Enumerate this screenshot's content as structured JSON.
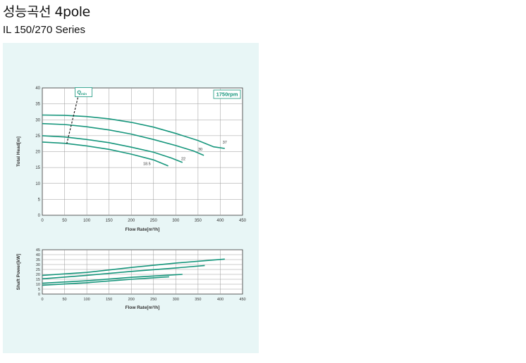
{
  "page": {
    "title": "성능곡선 4pole",
    "subtitle": "IL 150/270 Series"
  },
  "colors": {
    "panel_bg": "#e8f6f6",
    "curve": "#16967c",
    "grid": "#9a9a9a",
    "axis": "#333333"
  },
  "chart_data": [
    {
      "type": "line",
      "name": "head-chart",
      "xlabel": "Flow Rate[m³/h]",
      "ylabel": "Total Head[m]",
      "xlim": [
        0,
        450
      ],
      "ylim": [
        0,
        40
      ],
      "xticks": [
        0,
        50,
        100,
        150,
        200,
        250,
        300,
        350,
        400,
        450
      ],
      "yticks": [
        0,
        5,
        10,
        15,
        20,
        25,
        30,
        35,
        40
      ],
      "grid": true,
      "speed_badge": "1750rpm",
      "qmin_label": "Q",
      "qmin_sub": "min",
      "qmin_line": [
        [
          80,
          37
        ],
        [
          55,
          22.5
        ]
      ],
      "series": [
        {
          "name": "37",
          "points": [
            [
              0,
              31.5
            ],
            [
              50,
              31.4
            ],
            [
              100,
              31
            ],
            [
              150,
              30.3
            ],
            [
              200,
              29.2
            ],
            [
              250,
              27.7
            ],
            [
              300,
              25.7
            ],
            [
              350,
              23.5
            ],
            [
              385,
              21.5
            ],
            [
              410,
              21
            ]
          ]
        },
        {
          "name": "30",
          "points": [
            [
              0,
              28.8
            ],
            [
              50,
              28.5
            ],
            [
              100,
              27.8
            ],
            [
              150,
              26.8
            ],
            [
              200,
              25.5
            ],
            [
              250,
              23.8
            ],
            [
              300,
              21.9
            ],
            [
              340,
              20.2
            ],
            [
              363,
              18.8
            ]
          ]
        },
        {
          "name": "22",
          "points": [
            [
              0,
              25
            ],
            [
              50,
              24.6
            ],
            [
              100,
              23.8
            ],
            [
              150,
              22.8
            ],
            [
              200,
              21.4
            ],
            [
              250,
              19.8
            ],
            [
              290,
              18
            ],
            [
              315,
              16.6
            ]
          ]
        },
        {
          "name": "18.5",
          "points": [
            [
              0,
              23
            ],
            [
              50,
              22.6
            ],
            [
              100,
              21.8
            ],
            [
              150,
              20.7
            ],
            [
              200,
              19.2
            ],
            [
              250,
              17.4
            ],
            [
              283,
              15.5
            ]
          ]
        }
      ],
      "curve_labels": [
        {
          "text": "37",
          "x": 410,
          "y": 22.5
        },
        {
          "text": "30",
          "x": 355,
          "y": 20.3
        },
        {
          "text": "22",
          "x": 317,
          "y": 17.3
        },
        {
          "text": "18.5",
          "x": 235,
          "y": 15.8
        }
      ]
    },
    {
      "type": "line",
      "name": "power-chart",
      "xlabel": "Flow Rate[m³/h]",
      "ylabel": "Shaft Power[kW]",
      "xlim": [
        0,
        450
      ],
      "ylim": [
        0,
        45
      ],
      "xticks": [
        0,
        50,
        100,
        150,
        200,
        250,
        300,
        350,
        400,
        450
      ],
      "yticks": [
        0,
        5,
        10,
        15,
        20,
        25,
        30,
        35,
        40,
        45
      ],
      "grid": true,
      "series": [
        {
          "name": "37",
          "points": [
            [
              0,
              19
            ],
            [
              100,
              22
            ],
            [
              200,
              27
            ],
            [
              300,
              31.5
            ],
            [
              410,
              35.5
            ]
          ]
        },
        {
          "name": "30",
          "points": [
            [
              0,
              15.5
            ],
            [
              100,
              19
            ],
            [
              200,
              23
            ],
            [
              300,
              26.5
            ],
            [
              365,
              29
            ]
          ]
        },
        {
          "name": "22",
          "points": [
            [
              0,
              11
            ],
            [
              100,
              13.5
            ],
            [
              200,
              17
            ],
            [
              315,
              20
            ]
          ]
        },
        {
          "name": "18.5",
          "points": [
            [
              0,
              9
            ],
            [
              100,
              11.5
            ],
            [
              200,
              15
            ],
            [
              285,
              17.5
            ]
          ]
        }
      ]
    }
  ]
}
